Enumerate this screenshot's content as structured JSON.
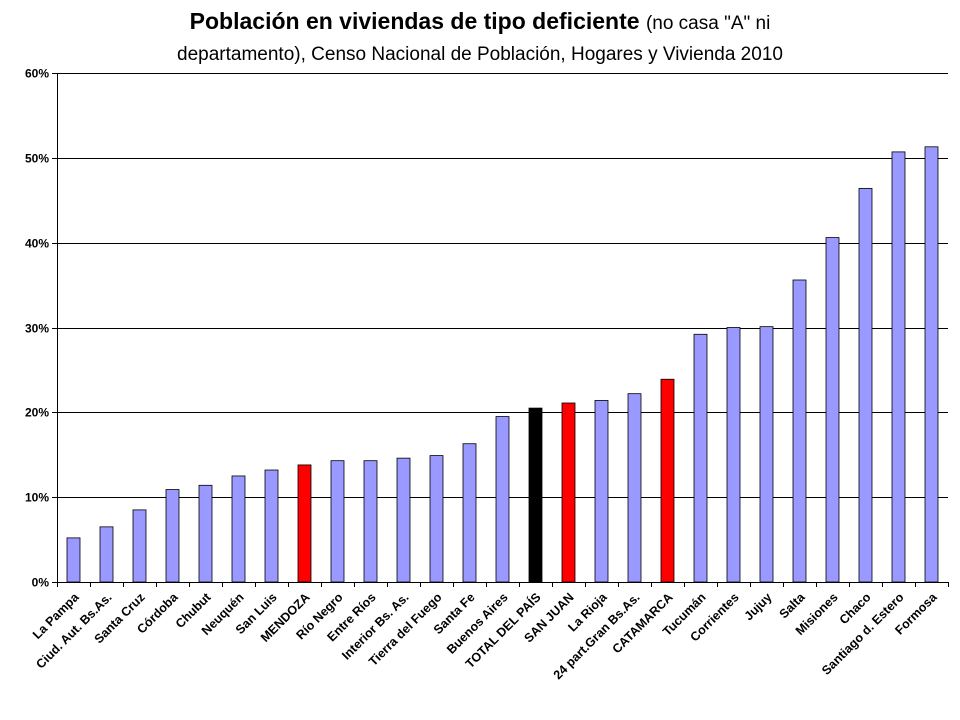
{
  "title": {
    "bold": "Población en viviendas de tipo deficiente",
    "rest": "(no casa \"A\" ni",
    "line2": "departamento), Censo Nacional de Población, Hogares y Vivienda 2010"
  },
  "chart_data": {
    "type": "bar",
    "ylim": [
      0,
      0.6
    ],
    "yticks": [
      0,
      0.1,
      0.2,
      0.3,
      0.4,
      0.5,
      0.6
    ],
    "ytick_labels": [
      "0%",
      "10%",
      "20%",
      "30%",
      "40%",
      "50%",
      "60%"
    ],
    "grid": true,
    "legend": "none",
    "categories": [
      "La Pampa",
      "Ciud. Aut. Bs.As.",
      "Santa Cruz",
      "Córdoba",
      "Chubut",
      "Neuquén",
      "San Luis",
      "MENDOZA",
      "Río Negro",
      "Entre Ríos",
      "Interior Bs. As.",
      "Tierra del Fuego",
      "Santa Fe",
      "Buenos Aires",
      "TOTAL DEL PAÍS",
      "SAN JUAN",
      "La Rioja",
      "24 part.Gran Bs.As.",
      "CATAMARCA",
      "Tucumán",
      "Corrientes",
      "Jujuy",
      "Salta",
      "Misiones",
      "Chaco",
      "Santiago d. Estero",
      "Formosa"
    ],
    "values": [
      0.052,
      0.065,
      0.085,
      0.109,
      0.114,
      0.125,
      0.132,
      0.138,
      0.143,
      0.143,
      0.146,
      0.149,
      0.163,
      0.195,
      0.205,
      0.211,
      0.214,
      0.222,
      0.239,
      0.292,
      0.3,
      0.301,
      0.356,
      0.406,
      0.464,
      0.507,
      0.513
    ],
    "colors": {
      "default": "#9999ff",
      "highlight": "#ff0000",
      "total": "#000000"
    },
    "highlight_categories": [
      "MENDOZA",
      "SAN JUAN",
      "CATAMARCA"
    ],
    "total_categories": [
      "TOTAL DEL PAÍS"
    ]
  }
}
